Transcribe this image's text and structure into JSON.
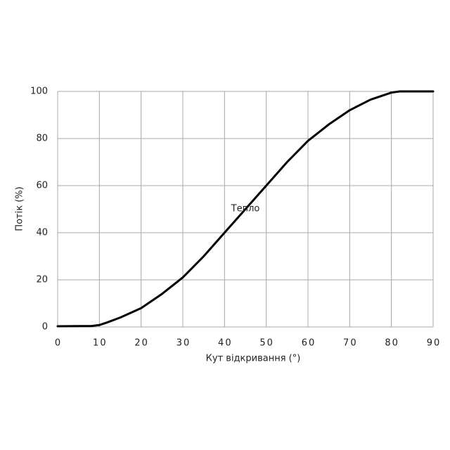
{
  "chart_data": {
    "type": "line",
    "x_label": "Кут відкривання (°)",
    "y_label": "Потік (%)",
    "series": [
      {
        "name": "Тепло",
        "color": "#000000",
        "x": [
          0,
          5,
          8,
          10,
          12,
          15,
          20,
          25,
          30,
          35,
          40,
          45,
          50,
          55,
          60,
          65,
          70,
          75,
          80,
          82,
          90
        ],
        "values": [
          0.3,
          0.4,
          0.4,
          0.8,
          2,
          4,
          8,
          14,
          21,
          30,
          40,
          50,
          60,
          70,
          79,
          86,
          92,
          96.5,
          99.5,
          100,
          100
        ]
      }
    ],
    "xlim": [
      0,
      90
    ],
    "xticks": [
      0,
      10,
      20,
      30,
      40,
      50,
      60,
      70,
      80,
      90
    ],
    "ylim": [
      0,
      100
    ],
    "yticks": [
      0,
      20,
      40,
      60,
      80,
      100
    ],
    "grid": true
  }
}
